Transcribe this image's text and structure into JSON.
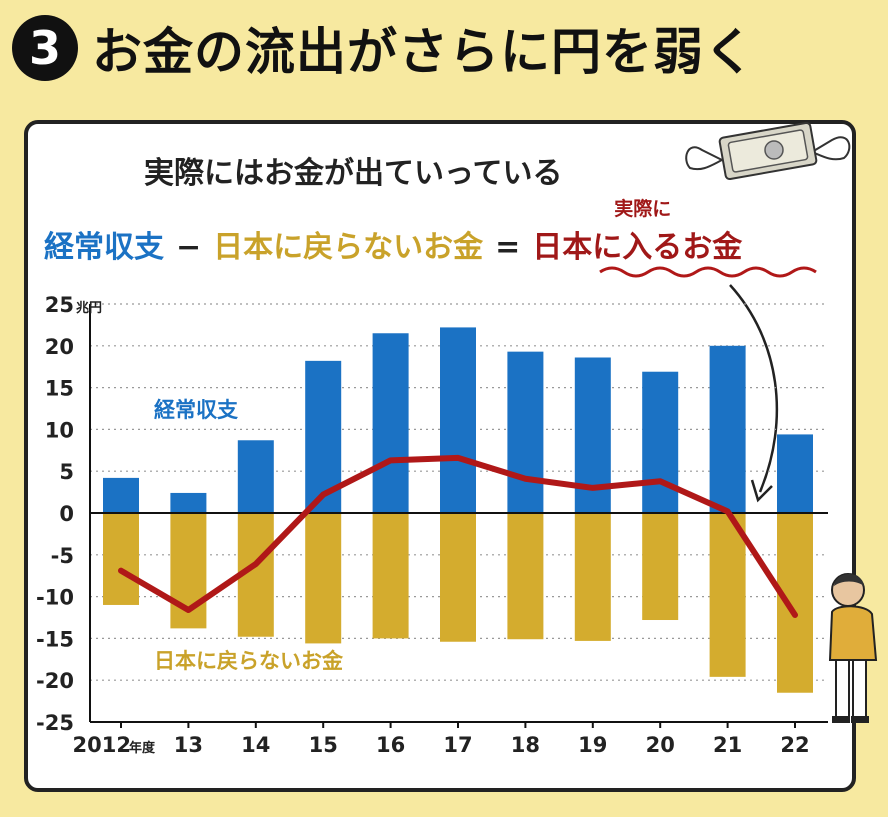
{
  "header": {
    "badge": "3",
    "title": "お金の流出がさらに円を弱く"
  },
  "chart_data": {
    "type": "bar",
    "title": "実際にはお金が出ていっている",
    "equation": {
      "term1": "経常収支",
      "minus": "−",
      "term2": "日本に戻らないお金",
      "equals": "=",
      "result": "日本に入るお金",
      "result_note": "実際に"
    },
    "y_unit": "兆円",
    "x_unit": "年度",
    "ylim": [
      -25,
      25
    ],
    "yticks": [
      25,
      20,
      15,
      10,
      5,
      0,
      -5,
      -10,
      -15,
      -20,
      -25
    ],
    "ytick_labels": [
      "25",
      "20",
      "15",
      "10",
      "5",
      "0",
      "-5",
      "-10",
      "-15",
      "-20",
      "-25"
    ],
    "categories": [
      "2012",
      "13",
      "14",
      "15",
      "16",
      "17",
      "18",
      "19",
      "20",
      "21",
      "22"
    ],
    "grid": true,
    "series": [
      {
        "name": "経常収支",
        "kind": "bar",
        "color": "#1b72c4",
        "values": [
          4.2,
          2.4,
          8.7,
          18.2,
          21.5,
          22.2,
          19.3,
          18.6,
          16.9,
          20.0,
          9.4
        ]
      },
      {
        "name": "日本に戻らないお金",
        "kind": "bar",
        "color": "#d4ac2e",
        "values": [
          -11.0,
          -13.8,
          -14.8,
          -15.6,
          -15.0,
          -15.4,
          -15.1,
          -15.3,
          -12.8,
          -19.6,
          -21.5
        ]
      },
      {
        "name": "日本に入るお金",
        "kind": "line",
        "color": "#b01818",
        "values": [
          -6.9,
          -11.6,
          -6.1,
          2.2,
          6.3,
          6.6,
          4.1,
          3.0,
          3.8,
          0.2,
          -12.2
        ]
      }
    ],
    "annotations": {
      "bar_pos_label": "経常収支",
      "bar_neg_label": "日本に戻らないお金"
    }
  }
}
